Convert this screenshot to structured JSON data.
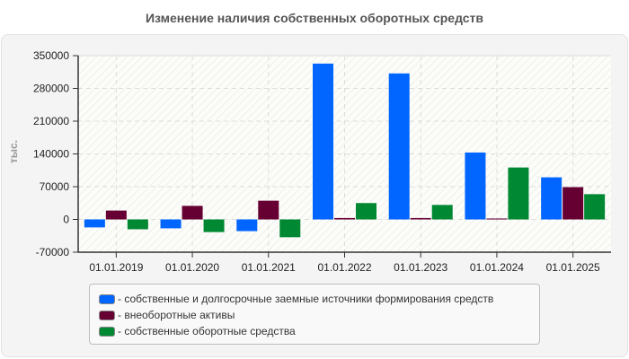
{
  "title": "Изменение наличия собственных оборотных средств",
  "chart_data": {
    "type": "bar",
    "title": "Изменение наличия собственных оборотных средств",
    "xlabel": "",
    "ylabel": "тыс.",
    "ylim": [
      -70000,
      350000
    ],
    "yticks": [
      350000,
      280000,
      210000,
      140000,
      70000,
      0,
      -70000
    ],
    "grid": true,
    "legend_position": "bottom",
    "categories": [
      "01.01.2019",
      "01.01.2020",
      "01.01.2021",
      "01.01.2022",
      "01.01.2023",
      "01.01.2024",
      "01.01.2025"
    ],
    "series": [
      {
        "name": "- собственные и долгосрочные заемные источники формирования средств",
        "color": "#0066ff",
        "values": [
          -17000,
          -19000,
          -25000,
          333000,
          312000,
          143000,
          90000
        ]
      },
      {
        "name": "- внеоборотные активы",
        "color": "#660033",
        "values": [
          19000,
          29000,
          40000,
          3000,
          3000,
          2000,
          69000
        ]
      },
      {
        "name": "- собственные оборотные средства",
        "color": "#008833",
        "values": [
          -21000,
          -27000,
          -38000,
          35000,
          31000,
          111000,
          54000
        ]
      }
    ]
  },
  "legend": {
    "items": [
      {
        "label": "- собственные и долгосрочные заемные источники формирования средств",
        "color": "#0066ff"
      },
      {
        "label": "- внеоборотные активы",
        "color": "#660033"
      },
      {
        "label": "- собственные оборотные средства",
        "color": "#008833"
      }
    ]
  }
}
